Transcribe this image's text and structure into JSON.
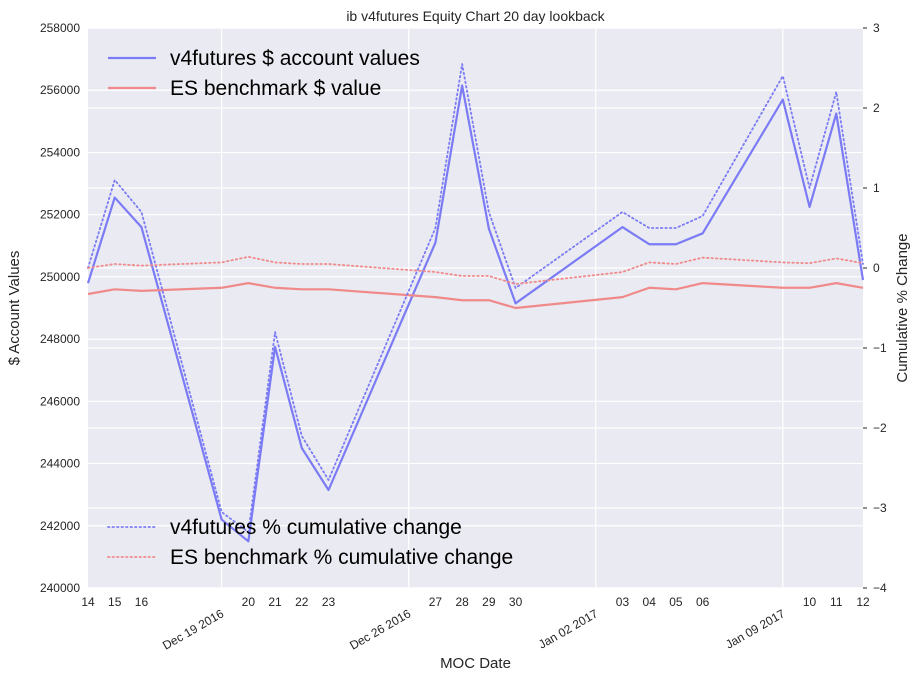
{
  "chart_data": {
    "type": "line",
    "title": "ib v4futures Equity Chart 20 day lookback",
    "xlabel": "MOC Date",
    "ylabel_left": "$ Account Values",
    "ylabel_right": "Cumulative % Change",
    "ylim_left": [
      240000,
      258000
    ],
    "ylim_right": [
      -4,
      3
    ],
    "yticks_left": [
      "240000",
      "242000",
      "244000",
      "246000",
      "248000",
      "250000",
      "252000",
      "254000",
      "256000",
      "258000"
    ],
    "yticks_right": [
      "−4",
      "−3",
      "−2",
      "−1",
      "0",
      "1",
      "2",
      "3"
    ],
    "xlim": [
      "2016-12-14",
      "2017-01-12"
    ],
    "x_minor_ticks": [
      {
        "date": "2016-12-14",
        "label": "14"
      },
      {
        "date": "2016-12-15",
        "label": "15"
      },
      {
        "date": "2016-12-16",
        "label": "16"
      },
      {
        "date": "2016-12-20",
        "label": "20"
      },
      {
        "date": "2016-12-21",
        "label": "21"
      },
      {
        "date": "2016-12-22",
        "label": "22"
      },
      {
        "date": "2016-12-23",
        "label": "23"
      },
      {
        "date": "2016-12-27",
        "label": "27"
      },
      {
        "date": "2016-12-28",
        "label": "28"
      },
      {
        "date": "2016-12-29",
        "label": "29"
      },
      {
        "date": "2016-12-30",
        "label": "30"
      },
      {
        "date": "2017-01-03",
        "label": "03"
      },
      {
        "date": "2017-01-04",
        "label": "04"
      },
      {
        "date": "2017-01-05",
        "label": "05"
      },
      {
        "date": "2017-01-06",
        "label": "06"
      },
      {
        "date": "2017-01-10",
        "label": "10"
      },
      {
        "date": "2017-01-11",
        "label": "11"
      },
      {
        "date": "2017-01-12",
        "label": "12"
      }
    ],
    "x_major_ticks": [
      {
        "date": "2016-12-19",
        "label": "Dec 19 2016"
      },
      {
        "date": "2016-12-26",
        "label": "Dec 26 2016"
      },
      {
        "date": "2017-01-02",
        "label": "Jan 02 2017"
      },
      {
        "date": "2017-01-09",
        "label": "Jan 09 2017"
      }
    ],
    "grid": true,
    "legend_upper": "top-left",
    "legend_lower": "bottom-left",
    "series": [
      {
        "name": "v4futures $ account values",
        "axis": "left",
        "style": "solid",
        "color": "#7b7bf5",
        "x": [
          "2016-12-14",
          "2016-12-15",
          "2016-12-16",
          "2016-12-19",
          "2016-12-20",
          "2016-12-21",
          "2016-12-22",
          "2016-12-23",
          "2016-12-27",
          "2016-12-28",
          "2016-12-29",
          "2016-12-30",
          "2017-01-03",
          "2017-01-04",
          "2017-01-05",
          "2017-01-06",
          "2017-01-09",
          "2017-01-10",
          "2017-01-11",
          "2017-01-12"
        ],
        "y": [
          249800,
          252550,
          251600,
          242200,
          241500,
          247750,
          244500,
          243150,
          251100,
          256150,
          251550,
          249150,
          251600,
          251050,
          251050,
          251400,
          255700,
          252250,
          255250,
          249900
        ]
      },
      {
        "name": "ES benchmark $ value",
        "axis": "left",
        "style": "solid",
        "color": "#f08a8a",
        "x": [
          "2016-12-14",
          "2016-12-15",
          "2016-12-16",
          "2016-12-19",
          "2016-12-20",
          "2016-12-21",
          "2016-12-22",
          "2016-12-23",
          "2016-12-27",
          "2016-12-28",
          "2016-12-29",
          "2016-12-30",
          "2017-01-03",
          "2017-01-04",
          "2017-01-05",
          "2017-01-06",
          "2017-01-09",
          "2017-01-10",
          "2017-01-11",
          "2017-01-12"
        ],
        "y": [
          249450,
          249600,
          249550,
          249650,
          249800,
          249650,
          249600,
          249600,
          249350,
          249250,
          249250,
          249000,
          249350,
          249650,
          249600,
          249800,
          249650,
          249650,
          249800,
          249650
        ]
      },
      {
        "name": "v4futures % cumulative change",
        "axis": "right",
        "style": "dotted",
        "color": "#7b7bf5",
        "x": [
          "2016-12-14",
          "2016-12-15",
          "2016-12-16",
          "2016-12-19",
          "2016-12-20",
          "2016-12-21",
          "2016-12-22",
          "2016-12-23",
          "2016-12-27",
          "2016-12-28",
          "2016-12-29",
          "2016-12-30",
          "2017-01-03",
          "2017-01-04",
          "2017-01-05",
          "2017-01-06",
          "2017-01-09",
          "2017-01-10",
          "2017-01-11",
          "2017-01-12"
        ],
        "y": [
          0.0,
          1.1,
          0.7,
          -3.05,
          -3.3,
          -0.8,
          -2.1,
          -2.65,
          0.5,
          2.55,
          0.7,
          -0.25,
          0.7,
          0.5,
          0.5,
          0.65,
          2.4,
          1.0,
          2.2,
          0.05
        ]
      },
      {
        "name": "ES benchmark % cumulative change",
        "axis": "right",
        "style": "dotted",
        "color": "#f08a8a",
        "x": [
          "2016-12-14",
          "2016-12-15",
          "2016-12-16",
          "2016-12-19",
          "2016-12-20",
          "2016-12-21",
          "2016-12-22",
          "2016-12-23",
          "2016-12-27",
          "2016-12-28",
          "2016-12-29",
          "2016-12-30",
          "2017-01-03",
          "2017-01-04",
          "2017-01-05",
          "2017-01-06",
          "2017-01-09",
          "2017-01-10",
          "2017-01-11",
          "2017-01-12"
        ],
        "y": [
          0.0,
          0.05,
          0.03,
          0.07,
          0.14,
          0.07,
          0.05,
          0.05,
          -0.05,
          -0.1,
          -0.1,
          -0.2,
          -0.05,
          0.07,
          0.05,
          0.13,
          0.07,
          0.06,
          0.12,
          0.06
        ]
      }
    ]
  }
}
